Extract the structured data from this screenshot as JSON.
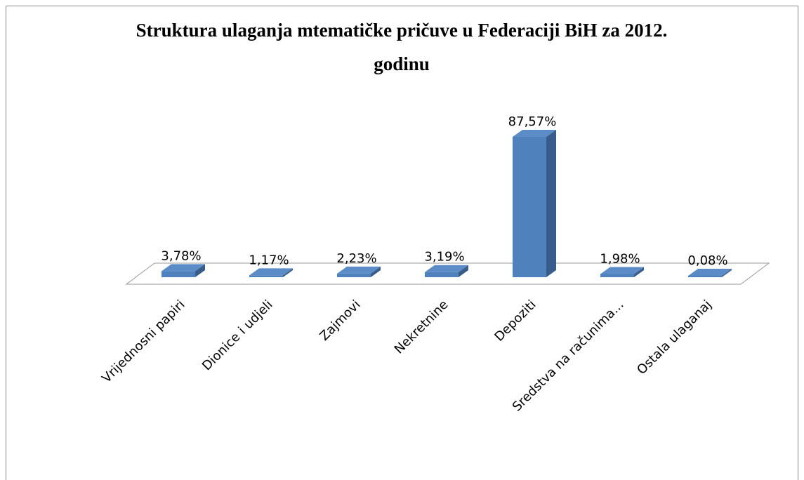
{
  "chart_data": {
    "type": "bar3d",
    "title": "Struktura ulaganja mtematičke pričuve u Federaciji BiH za 2012. godinu",
    "categories": [
      "Vrijednosni papiri",
      "Dionice i udjeli",
      "Zajmovi",
      "Nekretnine",
      "Depoziti",
      "Sredstva na računima...",
      "Ostala ulaganaj"
    ],
    "values": [
      3.78,
      1.17,
      2.23,
      3.19,
      87.57,
      1.98,
      0.08
    ],
    "value_labels": [
      "3,78%",
      "1,17%",
      "2,23%",
      "3,19%",
      "87,57%",
      "1,98%",
      "0,08%"
    ],
    "color": "#4f81bd"
  }
}
